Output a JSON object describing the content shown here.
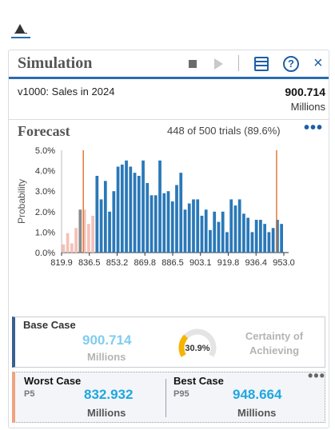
{
  "panel": {
    "title": "Simulation",
    "icons": [
      "stop-icon",
      "play-icon",
      "layout-icon",
      "help-icon",
      "close-icon"
    ],
    "close_glyph": "×",
    "help_glyph": "?"
  },
  "variable": {
    "name": "v1000: Sales in 2024",
    "value": "900.714",
    "unit": "Millions"
  },
  "forecast": {
    "title": "Forecast",
    "trials": "448 of 500 trials (89.6%)",
    "more_glyph": "•••"
  },
  "chart_data": {
    "type": "bar",
    "ylabel": "Probability",
    "xlabel": "",
    "ylim": [
      0,
      5.0
    ],
    "y_ticks": [
      "0.0%",
      "1.0%",
      "2.0%",
      "3.0%",
      "4.0%",
      "5.0%"
    ],
    "x_ticks": [
      "819.9",
      "836.5",
      "853.2",
      "869.8",
      "886.5",
      "903.1",
      "919.8",
      "936.4",
      "953.0"
    ],
    "x_range": [
      819.9,
      953.0
    ],
    "lower_cut": 832.932,
    "upper_cut": 948.664,
    "bin_width": 1.65,
    "bins_start": 819.9,
    "values": [
      0.4,
      0.95,
      0.45,
      1.2,
      2.1,
      2.1,
      1.4,
      1.8,
      3.75,
      2.6,
      3.5,
      2.0,
      3.0,
      4.2,
      4.3,
      4.5,
      4.2,
      3.9,
      3.75,
      4.5,
      3.4,
      2.8,
      2.8,
      4.5,
      2.9,
      3.0,
      2.5,
      3.3,
      3.9,
      2.1,
      2.4,
      2.6,
      2.6,
      1.8,
      2.1,
      1.1,
      2.0,
      1.5,
      2.0,
      1.0,
      2.6,
      2.3,
      2.6,
      1.9,
      1.7,
      1.0,
      1.6,
      1.6,
      1.4,
      1.0,
      1.2,
      1.6,
      1.4
    ],
    "colors": {
      "in_range": "#2a78b8",
      "out_of_range": "#f3c1b8",
      "cut_line": "#e07a3a",
      "base_bar": "#8a8a8a"
    },
    "grid": false,
    "legend": "none"
  },
  "base_case": {
    "label": "Base Case",
    "value": "900.714",
    "unit": "Millions",
    "certainty_value": 30.9,
    "certainty_text": "30.9%",
    "certainty_label": "Certainty of Achieving"
  },
  "range": {
    "worst_label": "Worst Case",
    "worst_percentile": "P5",
    "worst_value": "832.932",
    "worst_unit": "Millions",
    "best_label": "Best Case",
    "best_percentile": "P95",
    "best_value": "948.664",
    "best_unit": "Millions",
    "more_glyph": "•••"
  }
}
